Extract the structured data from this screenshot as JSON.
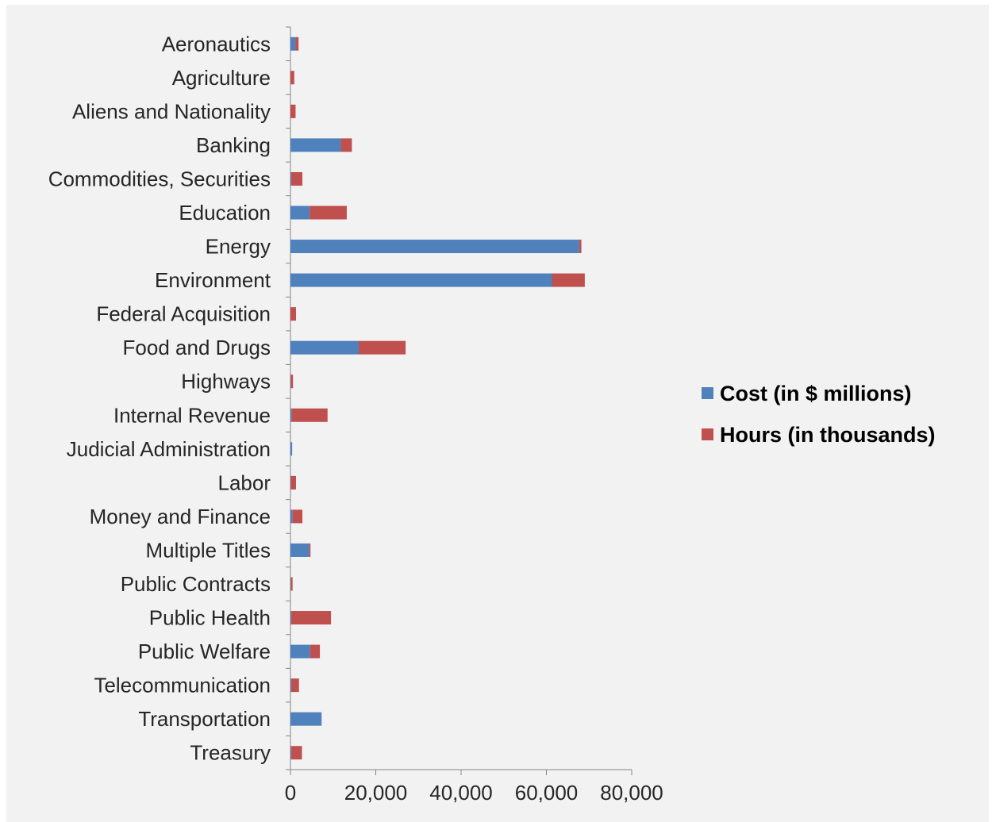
{
  "chart_data": {
    "type": "bar",
    "orientation": "horizontal",
    "stacked": true,
    "categories": [
      "Aeronautics",
      "Agriculture",
      "Aliens and Nationality",
      "Banking",
      "Commodities, Securities",
      "Education",
      "Energy",
      "Environment",
      "Federal Acquisition",
      "Food and Drugs",
      "Highways",
      "Internal Revenue",
      "Judicial Administration",
      "Labor",
      "Money and Finance",
      "Multiple Titles",
      "Public Contracts",
      "Public Health",
      "Public Welfare",
      "Telecommunication",
      "Transportation",
      "Treasury"
    ],
    "series": [
      {
        "name": "Cost (in $ millions)",
        "color": "#4f81bd",
        "values": [
          1200,
          0,
          0,
          11800,
          200,
          4500,
          67700,
          61300,
          0,
          16000,
          100,
          300,
          400,
          100,
          500,
          4400,
          100,
          200,
          4600,
          200,
          7300,
          200
        ]
      },
      {
        "name": "Hours (in thousands)",
        "color": "#c0504d",
        "values": [
          700,
          900,
          1200,
          2600,
          2600,
          8700,
          500,
          7700,
          1300,
          11000,
          500,
          8400,
          0,
          1200,
          2300,
          300,
          400,
          9300,
          2300,
          1800,
          0,
          2500
        ]
      }
    ],
    "xlim": [
      0,
      80000
    ],
    "xticks": [
      "0",
      "20,000",
      "40,000",
      "60,000",
      "80,000"
    ],
    "legend_position": "right",
    "grid": false
  }
}
